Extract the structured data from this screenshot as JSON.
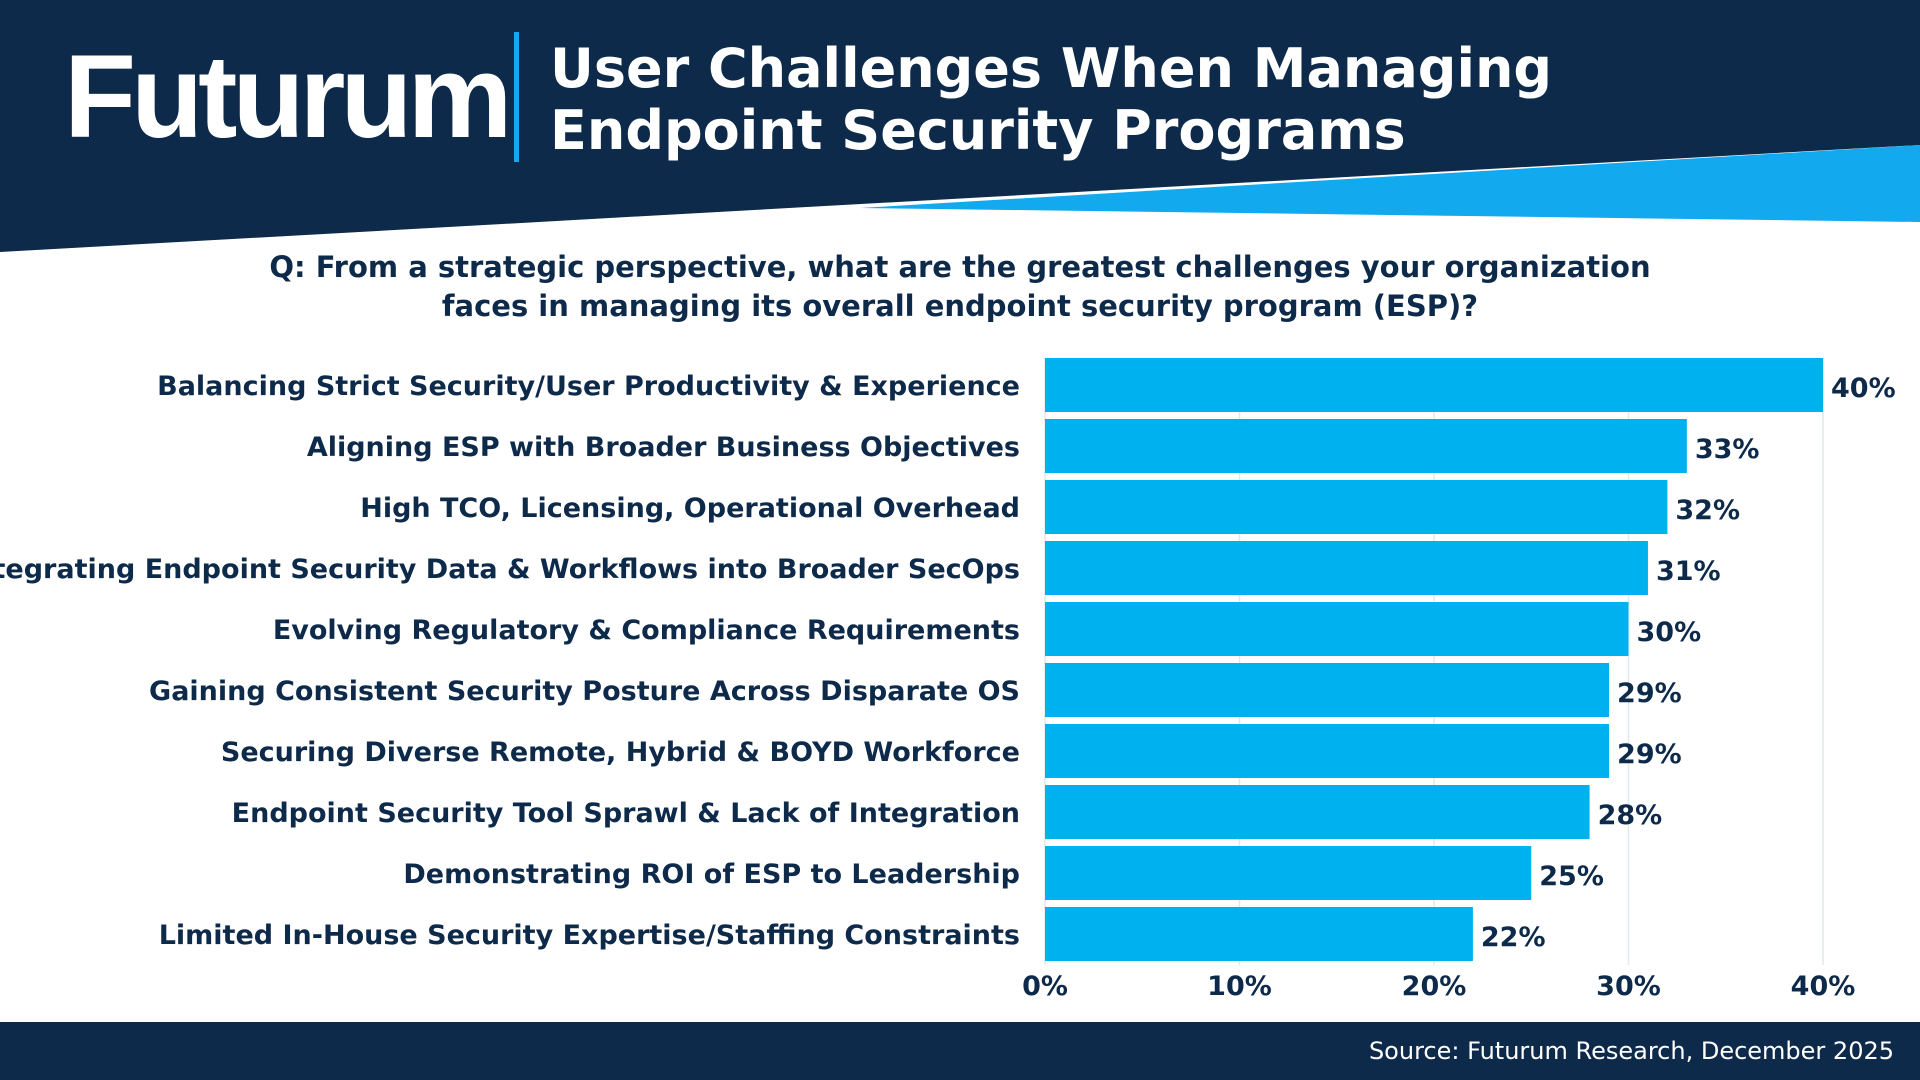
{
  "header": {
    "logo": "Futurum",
    "title_line1": "User Challenges When Managing",
    "title_line2": "Endpoint Security Programs"
  },
  "question": {
    "line1": "Q: From a strategic perspective, what are the greatest challenges your organization",
    "line2": "faces in managing its overall endpoint security program (ESP)?"
  },
  "colors": {
    "navy": "#0e2a4a",
    "accent": "#12a9ee",
    "bar": "#00b1f0"
  },
  "chart_data": {
    "type": "bar",
    "orientation": "horizontal",
    "categories": [
      "Balancing Strict Security/User Productivity & Experience",
      "Aligning ESP with Broader Business Objectives",
      "High TCO, Licensing, Operational Overhead",
      "Integrating Endpoint Security Data & Workflows into Broader SecOps",
      "Evolving Regulatory & Compliance Requirements",
      "Gaining Consistent Security Posture Across Disparate OS",
      "Securing Diverse Remote, Hybrid & BOYD Workforce",
      "Endpoint Security Tool Sprawl & Lack of Integration",
      "Demonstrating ROI of ESP to Leadership",
      "Limited In-House Security Expertise/Staffing Constraints"
    ],
    "values": [
      40,
      33,
      32,
      31,
      30,
      29,
      29,
      28,
      25,
      22
    ],
    "data_labels": [
      "40%",
      "33%",
      "32%",
      "31%",
      "30%",
      "29%",
      "29%",
      "28%",
      "25%",
      "22%"
    ],
    "xlim": [
      0,
      40
    ],
    "xticks": [
      0,
      10,
      20,
      30,
      40
    ],
    "xtick_labels": [
      "0%",
      "10%",
      "20%",
      "30%",
      "40%"
    ],
    "grid": "vertical",
    "legend": "none"
  },
  "footer": {
    "source": "Source: Futurum Research, December 2025"
  }
}
